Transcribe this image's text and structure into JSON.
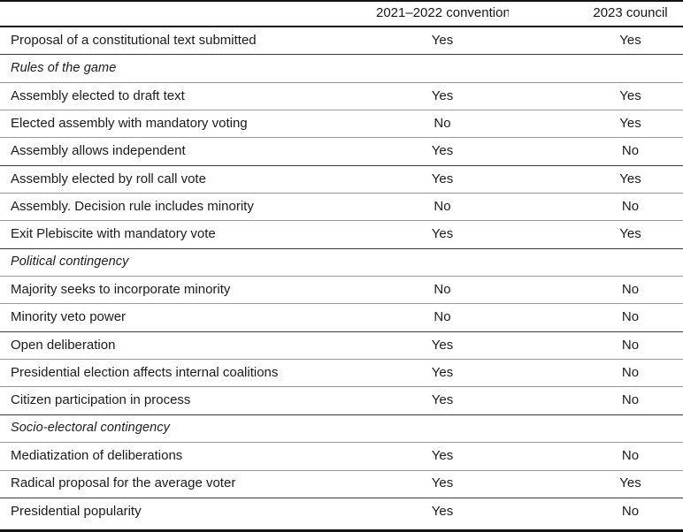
{
  "colors": {
    "rule_dark": "#141414",
    "rule_medium": "#3a3a3a",
    "rule_light": "#9a9a9a",
    "text": "#1b1b1b"
  },
  "table": {
    "column_headers": {
      "col1": "2021–2022 convention",
      "col2": "2023 council"
    },
    "rows": [
      {
        "section": false,
        "label": "Proposal of a constitutional text submitted",
        "convention": "Yes",
        "council": "Yes"
      },
      {
        "section": true,
        "label": "Rules of the game",
        "convention": "",
        "council": ""
      },
      {
        "section": false,
        "label": "Assembly elected to draft text",
        "convention": "Yes",
        "council": "Yes"
      },
      {
        "section": false,
        "label": "Elected assembly with mandatory voting",
        "convention": "No",
        "council": "Yes"
      },
      {
        "section": false,
        "label": "Assembly allows independent",
        "convention": "Yes",
        "council": "No"
      },
      {
        "section": false,
        "label": "Assembly elected by roll call vote",
        "convention": "Yes",
        "council": "Yes"
      },
      {
        "section": false,
        "label": "Assembly. Decision rule includes minority",
        "convention": "No",
        "council": "No"
      },
      {
        "section": false,
        "label": "Exit Plebiscite with mandatory vote",
        "convention": "Yes",
        "council": "Yes"
      },
      {
        "section": true,
        "label": "Political contingency",
        "convention": "",
        "council": ""
      },
      {
        "section": false,
        "label": "Majority seeks to incorporate minority",
        "convention": "No",
        "council": "No"
      },
      {
        "section": false,
        "label": "Minority veto power",
        "convention": "No",
        "council": "No"
      },
      {
        "section": false,
        "label": "Open deliberation",
        "convention": "Yes",
        "council": "No"
      },
      {
        "section": false,
        "label": "Presidential election affects internal coalitions",
        "convention": "Yes",
        "council": "No"
      },
      {
        "section": false,
        "label": "Citizen participation in process",
        "convention": "Yes",
        "council": "No"
      },
      {
        "section": true,
        "label": "Socio-electoral contingency",
        "convention": "",
        "council": ""
      },
      {
        "section": false,
        "label": "Mediatization of deliberations",
        "convention": "Yes",
        "council": "No"
      },
      {
        "section": false,
        "label": "Radical proposal for the average voter",
        "convention": "Yes",
        "council": "Yes"
      },
      {
        "section": false,
        "label": "Presidential popularity",
        "convention": "Yes",
        "council": "No"
      }
    ]
  }
}
